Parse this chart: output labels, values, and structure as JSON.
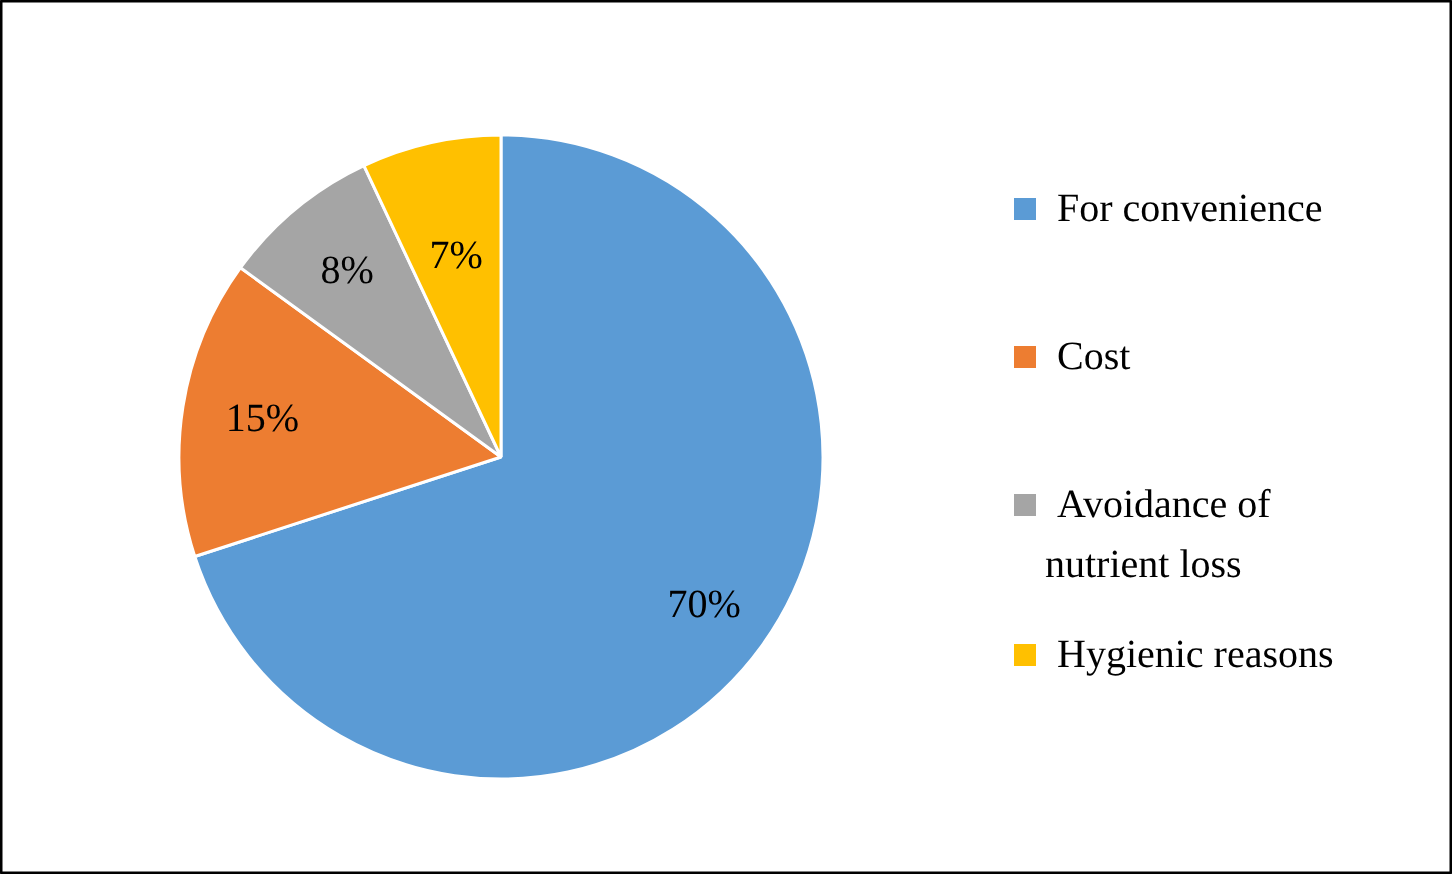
{
  "chart_data": {
    "type": "pie",
    "categories": [
      "For convenience",
      "Cost",
      "Avoidance of nutrient loss",
      "Hygienic reasons"
    ],
    "values": [
      70,
      15,
      8,
      7
    ],
    "colors": [
      "#5b9bd5",
      "#ed7d31",
      "#a5a5a5",
      "#ffc000"
    ],
    "value_labels": [
      "70%",
      "15%",
      "8%",
      "7%"
    ],
    "legend": "right"
  }
}
